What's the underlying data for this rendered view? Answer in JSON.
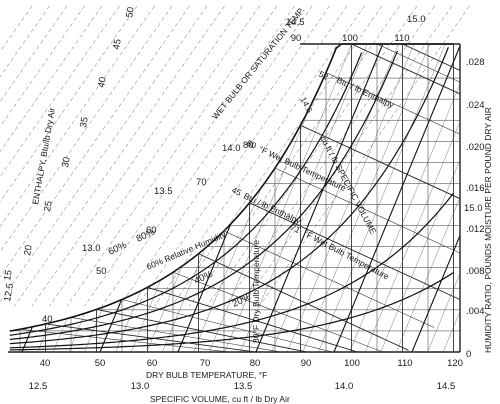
{
  "labels": {
    "enthalpy_axis": "ENTHALPY, Btu/lb Dry Air",
    "wet_bulb_axis": "WET BULB OR SATURATION TEMP.",
    "humidity_axis": "HUMIDITY RATIO, POUNDS MOISTURE PER POUND DRY AIR",
    "dry_bulb_axis": "DRY BULB TEMPERATURE, °F",
    "specific_volume_axis": "SPECIFIC VOLUME, cu ft / lb Dry Air",
    "ann_enthalpy_52": "Btu / lb Enthalpy",
    "ann_volume": "cu ft / lb SPECIFIC VOLUME",
    "ann_wet_bulb": "°F Wet Bulb Temperature",
    "ann_enthalpy_45": "Btu / lb Enthalpy",
    "ann_wet_bulb_71": "°F Wet Bulb Temperature",
    "ann_rh": "60% Relative Humidity",
    "ann_dry_bulb": "80°F Dry Bulb Temperature"
  },
  "chart_data": {
    "type": "psychrometric",
    "dry_bulb_ticks": [
      "40",
      "50",
      "60",
      "70",
      "80",
      "90",
      "100",
      "110",
      "120"
    ],
    "humidity_ticks": [
      ".028",
      ".024",
      ".020",
      ".016",
      ".012",
      ".008",
      ".004",
      "0"
    ],
    "enthalpy_ticks": [
      "50",
      "45",
      "40",
      "35",
      "30",
      "25",
      "20",
      "15",
      "12.5"
    ],
    "wet_bulb_top_ticks": [
      "90",
      "100",
      "110"
    ],
    "wet_bulb_curve_ticks": [
      "80",
      "70",
      "60",
      "50",
      "40"
    ],
    "specific_volume_bottom_ticks": [
      "12.5",
      "13.0",
      "13.5",
      "14.0",
      "14.5"
    ],
    "specific_volume_curve_ticks": [
      "14.5",
      "15.0",
      "14.0",
      "13.5",
      "13.0",
      "15.0"
    ],
    "relative_humidity_labels": [
      "80%",
      "60%",
      "40%",
      "20%"
    ],
    "annotation_values": {
      "enthalpy_52": "52",
      "volume_14_6": "14.6",
      "wet_bulb_80": "80",
      "enthalpy_45": "45",
      "wet_bulb_71": "71"
    }
  }
}
